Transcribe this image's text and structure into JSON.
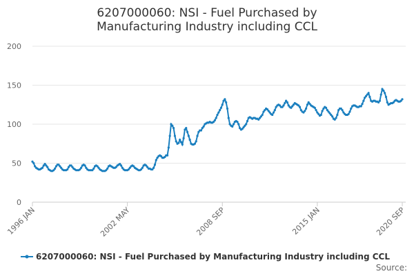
{
  "chart_data": {
    "type": "line",
    "title": "6207000060: NSI - Fuel Purchased by Manufacturing Industry including CCL",
    "source": "Source:",
    "categories": [
      "1996 JAN",
      null,
      null,
      null,
      null,
      null,
      null,
      null,
      null,
      null,
      null,
      null,
      null,
      null,
      null,
      null,
      null,
      null,
      null,
      null,
      null,
      null,
      null,
      null,
      null,
      null,
      null,
      null,
      null,
      null,
      null,
      null,
      null,
      null,
      null,
      null,
      null,
      null,
      null,
      null,
      null,
      null,
      null,
      null,
      null,
      null,
      null,
      null,
      null,
      null,
      null,
      null,
      null,
      null,
      null,
      null,
      null,
      null,
      null,
      null,
      null,
      null,
      null,
      null,
      null,
      null,
      null,
      null,
      null,
      null,
      null,
      null,
      null,
      null,
      null,
      null,
      "2002 MAY",
      null,
      null,
      null,
      null,
      null,
      null,
      null,
      null,
      null,
      null,
      null,
      null,
      null,
      null,
      null,
      null,
      null,
      null,
      null,
      null,
      null,
      null,
      null,
      null,
      null,
      null,
      null,
      null,
      null,
      null,
      null,
      null,
      null,
      null,
      null,
      null,
      null,
      null,
      null,
      null,
      null,
      null,
      null,
      null,
      null,
      null,
      null,
      null,
      null,
      null,
      null,
      null,
      null,
      null,
      null,
      null,
      null,
      null,
      null,
      null,
      null,
      null,
      null,
      null,
      null,
      null,
      null,
      null,
      null,
      null,
      null,
      null,
      null,
      null,
      null,
      "2008 SEP",
      null,
      null,
      null,
      null,
      null,
      null,
      null,
      null,
      null,
      null,
      null,
      null,
      null,
      null,
      null,
      null,
      null,
      null,
      null,
      null,
      null,
      null,
      null,
      null,
      null,
      null,
      null,
      null,
      null,
      null,
      null,
      null,
      null,
      null,
      null,
      null,
      null,
      null,
      null,
      null,
      null,
      null,
      null,
      null,
      null,
      null,
      null,
      null,
      null,
      null,
      null,
      null,
      null,
      null,
      null,
      null,
      null,
      null,
      null,
      null,
      null,
      null,
      null,
      null,
      null,
      null,
      null,
      null,
      null,
      null,
      null,
      null,
      null,
      null,
      null,
      "2015 JAN",
      null,
      null,
      null,
      null,
      null,
      null,
      null,
      null,
      null,
      null,
      null,
      null,
      null,
      null,
      null,
      null,
      null,
      null,
      null,
      null,
      null,
      null,
      null,
      null,
      null,
      null,
      null,
      null,
      null,
      null,
      null,
      null,
      null,
      null,
      null,
      null,
      null,
      null,
      null,
      null,
      null,
      null,
      null,
      null,
      null,
      null,
      null,
      null,
      null,
      null,
      null,
      null,
      null,
      null,
      null,
      null,
      null,
      null,
      null,
      null,
      null,
      null,
      null,
      null,
      null,
      null,
      null,
      "2020 SEP"
    ],
    "series": [
      {
        "name": "6207000060: NSI - Fuel Purchased by Manufacturing Industry including CCL",
        "color": "#1a7fbf",
        "values": [
          52,
          50,
          46,
          44,
          43,
          42,
          42,
          43,
          44,
          47,
          49,
          47,
          45,
          42,
          41,
          40,
          40,
          41,
          43,
          46,
          48,
          48,
          46,
          44,
          42,
          41,
          41,
          41,
          42,
          45,
          47,
          47,
          45,
          43,
          42,
          41,
          41,
          41,
          42,
          44,
          47,
          48,
          47,
          44,
          42,
          41,
          41,
          41,
          41,
          43,
          46,
          47,
          46,
          44,
          42,
          41,
          40,
          40,
          40,
          41,
          43,
          46,
          47,
          46,
          45,
          44,
          44,
          45,
          47,
          48,
          49,
          47,
          44,
          42,
          41,
          41,
          41,
          42,
          44,
          46,
          47,
          46,
          44,
          43,
          42,
          41,
          41,
          42,
          44,
          47,
          48,
          47,
          45,
          43,
          43,
          42,
          42,
          44,
          48,
          54,
          57,
          59,
          60,
          59,
          57,
          57,
          58,
          60,
          60,
          70,
          85,
          100,
          98,
          95,
          85,
          78,
          75,
          76,
          80,
          77,
          74,
          82,
          93,
          95,
          90,
          85,
          80,
          75,
          74,
          74,
          75,
          78,
          85,
          90,
          92,
          92,
          95,
          97,
          100,
          101,
          102,
          102,
          103,
          102,
          102,
          103,
          105,
          108,
          112,
          115,
          118,
          121,
          125,
          130,
          132,
          128,
          120,
          108,
          100,
          98,
          97,
          100,
          103,
          104,
          103,
          100,
          95,
          93,
          94,
          96,
          98,
          100,
          104,
          108,
          109,
          108,
          107,
          108,
          108,
          107,
          107,
          106,
          108,
          110,
          112,
          116,
          118,
          120,
          119,
          117,
          115,
          113,
          112,
          115,
          118,
          122,
          124,
          125,
          124,
          122,
          122,
          124,
          127,
          130,
          128,
          124,
          122,
          121,
          123,
          125,
          127,
          126,
          125,
          124,
          122,
          118,
          116,
          115,
          117,
          120,
          125,
          128,
          126,
          124,
          123,
          122,
          121,
          118,
          115,
          113,
          111,
          112,
          117,
          120,
          122,
          121,
          118,
          116,
          114,
          112,
          110,
          107,
          106,
          108,
          112,
          118,
          120,
          120,
          118,
          115,
          113,
          112,
          112,
          113,
          116,
          120,
          123,
          124,
          124,
          123,
          122,
          122,
          123,
          123,
          126,
          130,
          134,
          136,
          138,
          140,
          135,
          130,
          129,
          130,
          130,
          129,
          129,
          128,
          130,
          138,
          145,
          143,
          140,
          135,
          128,
          125,
          126,
          127,
          127,
          128,
          130,
          131,
          130,
          129,
          129,
          130,
          132
        ]
      }
    ],
    "ylim": [
      0,
      200
    ],
    "yticks": [
      0,
      50,
      100,
      150,
      200
    ],
    "grid": true
  }
}
